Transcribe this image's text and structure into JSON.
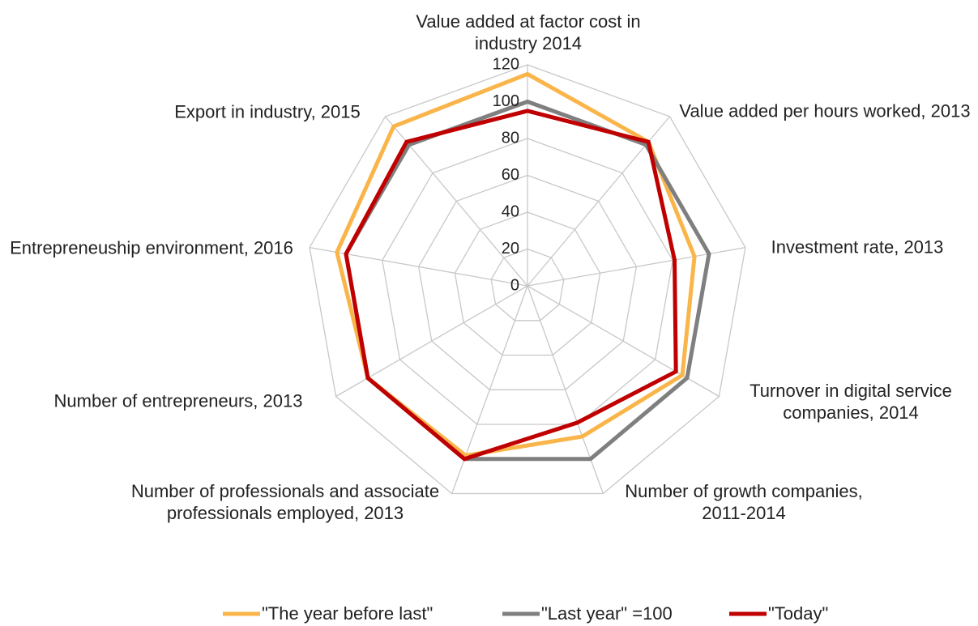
{
  "chart_data": {
    "type": "radar",
    "categories": [
      "Value added at factor cost in industry 2014",
      "Value added per hours worked, 2013",
      "Investment rate, 2013",
      "Turnover in digital service companies, 2014",
      "Number of growth companies, 2011-2014",
      "Number of professionals and associate professionals employed, 2013",
      "Number of entrepreneurs, 2013",
      "Entrepreneuship environment, 2016",
      "Export in industry, 2015"
    ],
    "series": [
      {
        "name": "\"The year before last\"",
        "color": "#f9b54a",
        "values": [
          115,
          102,
          92,
          97,
          87,
          98,
          100,
          105,
          113
        ]
      },
      {
        "name": "\"Last year\" =100",
        "color": "#7f7f7f",
        "values": [
          100,
          100,
          100,
          100,
          100,
          100,
          100,
          100,
          100
        ]
      },
      {
        "name": "\"Today\"",
        "color": "#c00000",
        "values": [
          95,
          102,
          81,
          93,
          79,
          100,
          100,
          100,
          102
        ]
      }
    ],
    "ylim": [
      0,
      120
    ],
    "yticks": [
      0,
      20,
      40,
      60,
      80,
      100,
      120
    ],
    "grid": true,
    "legend": "bottom"
  }
}
